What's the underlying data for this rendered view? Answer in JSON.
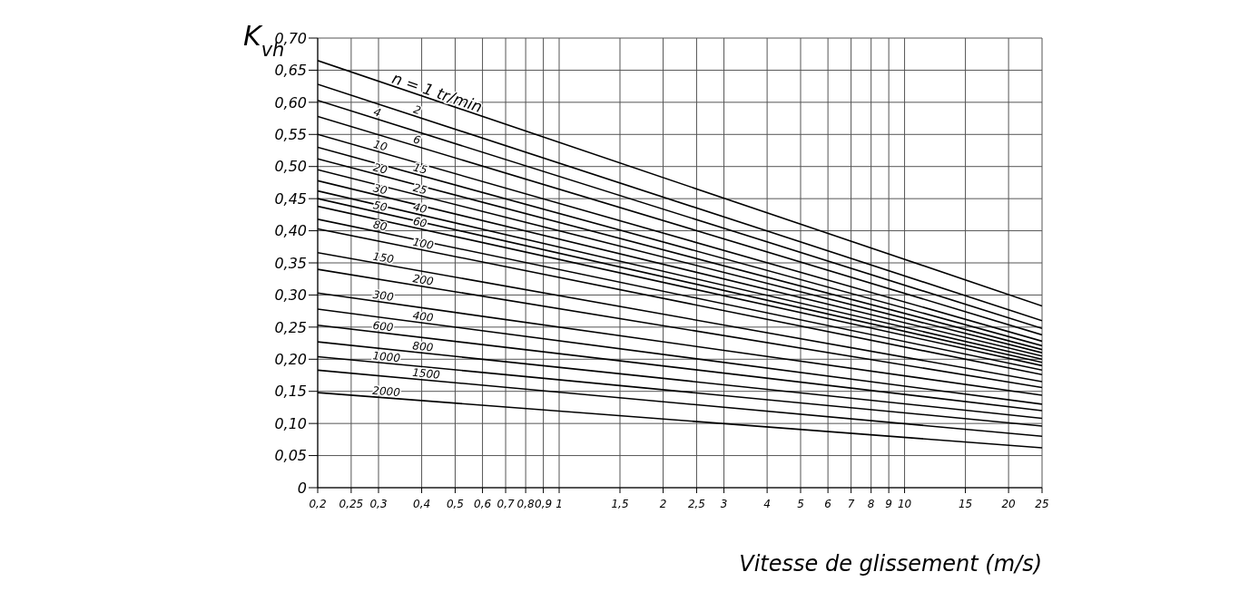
{
  "chart_data": {
    "type": "line",
    "ylabel": "K$_{vh}$",
    "xlabel": "Vitesse de glissement  (m/s)",
    "log": "x",
    "grid": true,
    "legend": false,
    "marker": "none",
    "line_style": "solid",
    "xlim": [
      0.2,
      25
    ],
    "ylim": [
      0,
      0.7
    ],
    "xticks": [
      {
        "value": 0.2,
        "label": "0,2"
      },
      {
        "value": 0.25,
        "label": "0,25"
      },
      {
        "value": 0.3,
        "label": "0,3"
      },
      {
        "value": 0.4,
        "label": "0,4"
      },
      {
        "value": 0.5,
        "label": "0,5"
      },
      {
        "value": 0.6,
        "label": "0,6"
      },
      {
        "value": 0.7,
        "label": "0,7"
      },
      {
        "value": 0.8,
        "label": "0,8"
      },
      {
        "value": 0.9,
        "label": "0,9"
      },
      1,
      {
        "value": 1.5,
        "label": "1,5"
      },
      2,
      {
        "value": 2.5,
        "label": "2,5"
      },
      3,
      4,
      5,
      6,
      7,
      8,
      9,
      10,
      15,
      20,
      25
    ],
    "yticks": [
      0,
      {
        "value": 0.05,
        "label": "0,05"
      },
      {
        "value": 0.1,
        "label": "0,10"
      },
      {
        "value": 0.15,
        "label": "0,15"
      },
      {
        "value": 0.2,
        "label": "0,20"
      },
      {
        "value": 0.25,
        "label": "0,25"
      },
      {
        "value": 0.3,
        "label": "0,30"
      },
      {
        "value": 0.35,
        "label": "0,35"
      },
      {
        "value": 0.4,
        "label": "0,40"
      },
      {
        "value": 0.45,
        "label": "0,45"
      },
      {
        "value": 0.5,
        "label": "0,50"
      },
      {
        "value": 0.55,
        "label": "0,55"
      },
      {
        "value": 0.6,
        "label": "0,60"
      },
      {
        "value": 0.65,
        "label": "0,65"
      },
      {
        "value": 0.7,
        "label": "0,70"
      }
    ],
    "x": [
      0.2,
      25
    ],
    "series": [
      {
        "name": "n = 1 tr/min",
        "color": "#000000",
        "values": [
          0.665,
          0.283
        ]
      },
      {
        "name": "2",
        "color": "#000000",
        "values": [
          0.628,
          0.26
        ]
      },
      {
        "name": "4",
        "color": "#000000",
        "values": [
          0.603,
          0.248
        ]
      },
      {
        "name": "6",
        "color": "#000000",
        "values": [
          0.578,
          0.238
        ]
      },
      {
        "name": "10",
        "color": "#000000",
        "values": [
          0.55,
          0.228
        ]
      },
      {
        "name": "15",
        "color": "#000000",
        "values": [
          0.53,
          0.221
        ]
      },
      {
        "name": "20",
        "color": "#000000",
        "values": [
          0.512,
          0.215
        ]
      },
      {
        "name": "25",
        "color": "#000000",
        "values": [
          0.495,
          0.21
        ]
      },
      {
        "name": "30",
        "color": "#000000",
        "values": [
          0.478,
          0.205
        ]
      },
      {
        "name": "40",
        "color": "#000000",
        "values": [
          0.462,
          0.2
        ]
      },
      {
        "name": "50",
        "color": "#000000",
        "values": [
          0.45,
          0.195
        ]
      },
      {
        "name": "60",
        "color": "#000000",
        "values": [
          0.438,
          0.19
        ]
      },
      {
        "name": "80",
        "color": "#000000",
        "values": [
          0.418,
          0.183
        ]
      },
      {
        "name": "100",
        "color": "#000000",
        "values": [
          0.403,
          0.176
        ]
      },
      {
        "name": "150",
        "color": "#000000",
        "values": [
          0.366,
          0.165
        ]
      },
      {
        "name": "200",
        "color": "#000000",
        "values": [
          0.34,
          0.156
        ]
      },
      {
        "name": "300",
        "color": "#000000",
        "values": [
          0.303,
          0.144
        ]
      },
      {
        "name": "400",
        "color": "#000000",
        "values": [
          0.278,
          0.13
        ]
      },
      {
        "name": "600",
        "color": "#000000",
        "values": [
          0.253,
          0.12
        ]
      },
      {
        "name": "800",
        "color": "#000000",
        "values": [
          0.227,
          0.108
        ]
      },
      {
        "name": "1000",
        "color": "#000000",
        "values": [
          0.204,
          0.096
        ]
      },
      {
        "name": "1500",
        "color": "#000000",
        "values": [
          0.183,
          0.08
        ]
      },
      {
        "name": "2000",
        "color": "#000000",
        "values": [
          0.148,
          0.062
        ]
      }
    ]
  }
}
